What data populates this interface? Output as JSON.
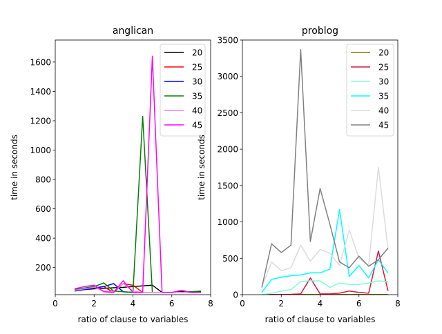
{
  "chart_data": [
    {
      "type": "line",
      "title": "anglican",
      "xlabel": "ratio of clause to variables",
      "ylabel": "time in seconds",
      "xlim": [
        0,
        8
      ],
      "ylim": [
        15,
        1750
      ],
      "xticks": [
        0,
        2,
        4,
        6,
        8
      ],
      "yticks": [
        200,
        400,
        600,
        800,
        1000,
        1200,
        1400,
        1600
      ],
      "legend_position": "top-right",
      "grid": false,
      "series": [
        {
          "name": "20",
          "color": "#000000",
          "x": [
            1.0,
            1.5,
            2.0,
            2.5,
            3.0,
            3.5,
            4.0,
            4.5,
            5.0,
            5.5,
            6.0,
            6.5,
            7.0,
            7.5
          ],
          "y": [
            45,
            50,
            55,
            58,
            62,
            65,
            70,
            75,
            80,
            30,
            30,
            35,
            35,
            35
          ]
        },
        {
          "name": "25",
          "color": "#ff0000",
          "x": [
            1.0,
            1.5,
            2.0,
            2.5,
            3.0,
            3.5,
            4.0,
            4.5,
            5.0,
            5.5,
            6.0,
            6.5,
            7.0,
            7.5
          ],
          "y": [
            50,
            55,
            60,
            70,
            30,
            90,
            80,
            30,
            30,
            30,
            30,
            30,
            30,
            30
          ]
        },
        {
          "name": "30",
          "color": "#0000ff",
          "x": [
            1.0,
            1.5,
            2.0,
            2.5,
            3.0,
            3.5,
            4.0,
            4.5,
            5.0,
            5.5,
            6.0,
            6.5,
            7.0,
            7.5
          ],
          "y": [
            40,
            50,
            60,
            70,
            90,
            35,
            30,
            30,
            30,
            30,
            30,
            30,
            30,
            30
          ]
        },
        {
          "name": "35",
          "color": "#008000",
          "x": [
            1.0,
            1.5,
            2.0,
            2.5,
            3.0,
            3.5,
            4.0,
            4.5,
            5.0,
            5.5,
            6.0,
            6.5,
            7.0,
            7.5
          ],
          "y": [
            50,
            60,
            70,
            95,
            40,
            35,
            30,
            1230,
            30,
            30,
            30,
            30,
            35,
            40
          ]
        },
        {
          "name": "40",
          "color": "#ee82ee",
          "x": [
            1.0,
            1.5,
            2.0,
            2.5,
            3.0,
            3.5,
            4.0,
            4.5,
            5.0,
            5.5,
            6.0,
            6.5,
            7.0,
            7.5
          ],
          "y": [
            45,
            55,
            65,
            40,
            35,
            90,
            40,
            30,
            30,
            30,
            30,
            30,
            30,
            30
          ]
        },
        {
          "name": "45",
          "color": "#ff00ff",
          "x": [
            1.0,
            1.5,
            2.0,
            2.5,
            3.0,
            3.5,
            4.0,
            4.5,
            5.0,
            5.5,
            6.0,
            6.5,
            7.0,
            7.5
          ],
          "y": [
            55,
            70,
            80,
            35,
            30,
            110,
            30,
            30,
            1640,
            30,
            30,
            45,
            30,
            30
          ]
        }
      ]
    },
    {
      "type": "line",
      "title": "problog",
      "xlabel": "ratio of clause to variables",
      "ylabel": "time in seconds",
      "xlim": [
        0,
        8
      ],
      "ylim": [
        0,
        3500
      ],
      "xticks": [
        0,
        2,
        4,
        6,
        8
      ],
      "yticks": [
        0,
        500,
        1000,
        1500,
        2000,
        2500,
        3000,
        3500
      ],
      "legend_position": "top-right",
      "grid": false,
      "series": [
        {
          "name": "20",
          "color": "#808000",
          "x": [
            1.0,
            1.5,
            2.0,
            2.5,
            3.0,
            3.5,
            4.0,
            4.5,
            5.0,
            5.5,
            6.0,
            6.5,
            7.0,
            7.5
          ],
          "y": [
            0,
            1,
            1,
            1,
            2,
            2,
            2,
            2,
            3,
            3,
            3,
            3,
            3,
            4
          ]
        },
        {
          "name": "25",
          "color": "#dc143c",
          "x": [
            1.0,
            1.5,
            2.0,
            2.5,
            3.0,
            3.5,
            4.0,
            4.5,
            5.0,
            5.5,
            6.0,
            6.5,
            7.0,
            7.5
          ],
          "y": [
            0,
            2,
            3,
            5,
            10,
            230,
            10,
            10,
            20,
            50,
            30,
            20,
            600,
            50
          ]
        },
        {
          "name": "30",
          "color": "#7fffd4",
          "x": [
            1.0,
            1.5,
            2.0,
            2.5,
            3.0,
            3.5,
            4.0,
            4.5,
            5.0,
            5.5,
            6.0,
            6.5,
            7.0,
            7.5
          ],
          "y": [
            0,
            20,
            50,
            70,
            180,
            190,
            190,
            100,
            160,
            140,
            140,
            160,
            190,
            180
          ]
        },
        {
          "name": "35",
          "color": "#00ffff",
          "x": [
            1.0,
            1.5,
            2.0,
            2.5,
            3.0,
            3.5,
            4.0,
            4.5,
            5.0,
            5.5,
            6.0,
            6.5,
            7.0,
            7.5
          ],
          "y": [
            30,
            210,
            240,
            260,
            270,
            300,
            300,
            350,
            1170,
            250,
            400,
            230,
            480,
            300
          ]
        },
        {
          "name": "40",
          "color": "#dcdcdc",
          "x": [
            1.0,
            1.5,
            2.0,
            2.5,
            3.0,
            3.5,
            4.0,
            4.5,
            5.0,
            5.5,
            6.0,
            6.5,
            7.0,
            7.5
          ],
          "y": [
            100,
            450,
            330,
            370,
            680,
            460,
            620,
            570,
            400,
            890,
            500,
            400,
            1750,
            620
          ]
        },
        {
          "name": "45",
          "color": "#808080",
          "x": [
            1.0,
            1.5,
            2.0,
            2.5,
            3.0,
            3.5,
            4.0,
            4.5,
            5.0,
            5.5,
            6.0,
            6.5,
            7.0,
            7.5
          ],
          "y": [
            100,
            700,
            580,
            680,
            3370,
            730,
            1460,
            970,
            450,
            370,
            530,
            390,
            480,
            640
          ]
        }
      ]
    }
  ]
}
